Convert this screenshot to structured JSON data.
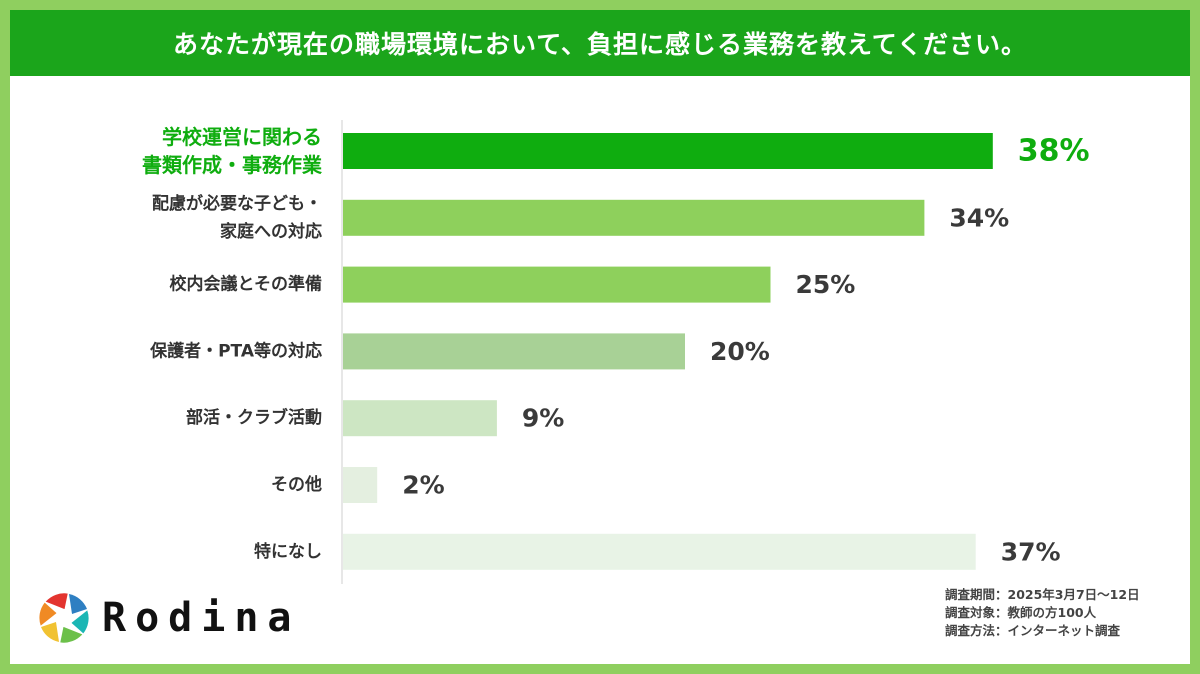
{
  "header": {
    "title": "あなたが現在の職場環境において、負担に感じる業務を教えてください。"
  },
  "chart_data": {
    "type": "bar",
    "orientation": "horizontal",
    "categories": [
      [
        "学校運営に関わる",
        "書類作成・事務作業"
      ],
      [
        "配慮が必要な子ども・",
        "家庭への対応"
      ],
      [
        "校内会議とその準備"
      ],
      [
        "保護者・PTA等の対応"
      ],
      [
        "部活・クラブ活動"
      ],
      [
        "その他"
      ],
      [
        "特になし"
      ]
    ],
    "values": [
      38,
      34,
      25,
      20,
      9,
      2,
      37
    ],
    "value_labels": [
      "38%",
      "34%",
      "25%",
      "20%",
      "9%",
      "2%",
      "37%"
    ],
    "colors": [
      "#0fad0f",
      "#8ed05c",
      "#8ed05c",
      "#a8d196",
      "#cde6c3",
      "#e4efe0",
      "#e8f3e6"
    ],
    "highlight_index": 0,
    "highlight_color": "#0fad0f",
    "unit": "%"
  },
  "brand": {
    "name": "Rodina"
  },
  "survey_info": [
    "調査期間：2025年3月7日～12日",
    "調査対象：教師の方100人",
    "調査方法：インターネット調査"
  ]
}
